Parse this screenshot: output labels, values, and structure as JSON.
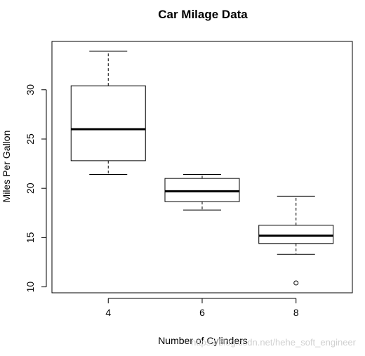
{
  "chart_data": {
    "type": "boxplot",
    "title": "Car Milage Data",
    "xlabel": "Number of Cylinders",
    "ylabel": "Miles Per Gallon",
    "categories": [
      "4",
      "6",
      "8"
    ],
    "boxes": [
      {
        "category": "4",
        "whisker_low": 21.4,
        "q1": 22.8,
        "median": 26.0,
        "q3": 30.4,
        "whisker_high": 33.9,
        "outliers": []
      },
      {
        "category": "6",
        "whisker_low": 17.8,
        "q1": 18.65,
        "median": 19.7,
        "q3": 21.0,
        "whisker_high": 21.4,
        "outliers": []
      },
      {
        "category": "8",
        "whisker_low": 13.3,
        "q1": 14.4,
        "median": 15.2,
        "q3": 16.25,
        "whisker_high": 19.2,
        "outliers": [
          10.4
        ]
      }
    ],
    "yticks": [
      "10",
      "15",
      "20",
      "25",
      "30"
    ],
    "ylim": [
      9.4,
      34.9
    ],
    "grid": false,
    "legend": "none",
    "colors": {
      "box_stroke": "#000000",
      "background": "#ffffff"
    }
  },
  "watermark": "https://blog.csdn.net/hehe_soft_engineer"
}
